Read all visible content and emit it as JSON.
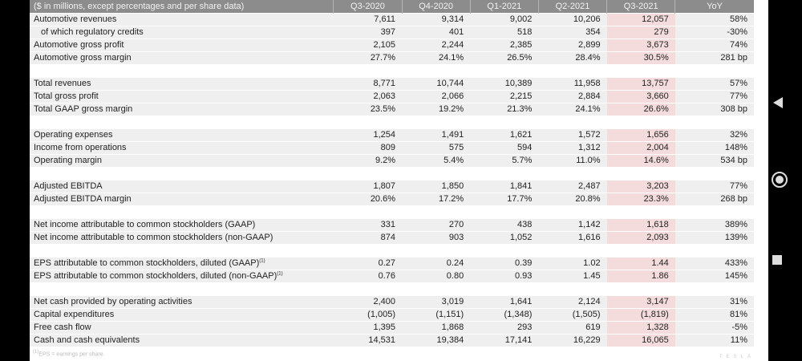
{
  "table": {
    "headers": [
      "($ in millions, except percentages and per share data)",
      "Q3-2020",
      "Q4-2020",
      "Q1-2021",
      "Q2-2021",
      "Q3-2021",
      "YoY"
    ],
    "groups": [
      [
        [
          "Automotive revenues",
          "7,611",
          "9,314",
          "9,002",
          "10,206",
          "12,057",
          "58%"
        ],
        [
          "of which regulatory credits",
          "397",
          "401",
          "518",
          "354",
          "279",
          "-30%"
        ],
        [
          "Automotive gross profit",
          "2,105",
          "2,244",
          "2,385",
          "2,899",
          "3,673",
          "74%"
        ],
        [
          "Automotive gross margin",
          "27.7%",
          "24.1%",
          "26.5%",
          "28.4%",
          "30.5%",
          "281 bp"
        ]
      ],
      [
        [
          "Total revenues",
          "8,771",
          "10,744",
          "10,389",
          "11,958",
          "13,757",
          "57%"
        ],
        [
          "Total gross profit",
          "2,063",
          "2,066",
          "2,215",
          "2,884",
          "3,660",
          "77%"
        ],
        [
          "Total GAAP gross margin",
          "23.5%",
          "19.2%",
          "21.3%",
          "24.1%",
          "26.6%",
          "308 bp"
        ]
      ],
      [
        [
          "Operating expenses",
          "1,254",
          "1,491",
          "1,621",
          "1,572",
          "1,656",
          "32%"
        ],
        [
          "Income from operations",
          "809",
          "575",
          "594",
          "1,312",
          "2,004",
          "148%"
        ],
        [
          "Operating margin",
          "9.2%",
          "5.4%",
          "5.7%",
          "11.0%",
          "14.6%",
          "534 bp"
        ]
      ],
      [
        [
          "Adjusted EBITDA",
          "1,807",
          "1,850",
          "1,841",
          "2,487",
          "3,203",
          "77%"
        ],
        [
          "Adjusted EBITDA margin",
          "20.6%",
          "17.2%",
          "17.7%",
          "20.8%",
          "23.3%",
          "268 bp"
        ]
      ],
      [
        [
          "Net income attributable to common stockholders (GAAP)",
          "331",
          "270",
          "438",
          "1,142",
          "1,618",
          "389%"
        ],
        [
          "Net income attributable to common stockholders (non-GAAP)",
          "874",
          "903",
          "1,052",
          "1,616",
          "2,093",
          "139%"
        ]
      ],
      [
        [
          "EPS attributable to common stockholders, diluted (GAAP)",
          "0.27",
          "0.24",
          "0.39",
          "1.02",
          "1.44",
          "433%"
        ],
        [
          "EPS attributable to common stockholders, diluted (non-GAAP)",
          "0.76",
          "0.80",
          "0.93",
          "1.45",
          "1.86",
          "145%"
        ]
      ],
      [
        [
          "Net cash provided by operating activities",
          "2,400",
          "3,019",
          "1,641",
          "2,124",
          "3,147",
          "31%"
        ],
        [
          "Capital expenditures",
          "(1,005)",
          "(1,151)",
          "(1,348)",
          "(1,505)",
          "(1,819)",
          "81%"
        ],
        [
          "Free cash flow",
          "1,395",
          "1,868",
          "293",
          "619",
          "1,328",
          "-5%"
        ],
        [
          "Cash and cash equivalents",
          "14,531",
          "19,384",
          "17,141",
          "16,229",
          "16,065",
          "11%"
        ]
      ]
    ],
    "footnote_marker": "(1)",
    "footnote": "EPS = earnings per share."
  },
  "logo": "TESLA",
  "nav": {
    "back": "back-icon",
    "home": "home-icon",
    "recents": "recents-icon"
  },
  "colors": {
    "header": "#8c8c8c",
    "row": "#efefef",
    "highlight": "#f4dcdc"
  }
}
